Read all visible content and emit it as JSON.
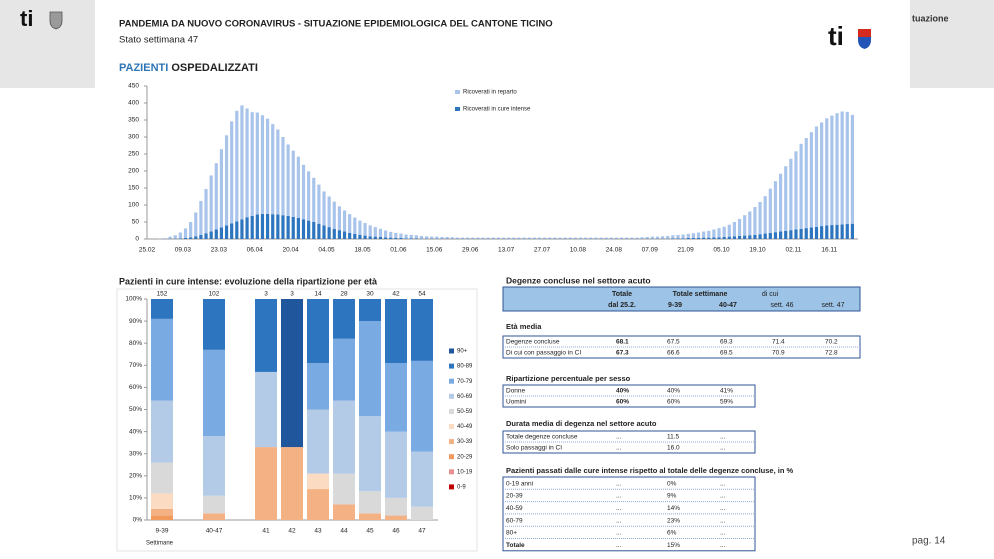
{
  "header": {
    "logo_text": "ti",
    "title": "PANDEMIA DA NUOVO CORONAVIRUS - SITUAZIONE EPIDEMIOLOGICA DEL CANTONE TICINO",
    "subtitle": "Stato settimana 47",
    "section_title_1": "PAZIENTI",
    "section_title_2": "OSPEDALIZZATI",
    "side_text": "tuazione",
    "page": "pag. 14"
  },
  "chart_data": [
    {
      "type": "bar",
      "stacked": true,
      "categories": [
        "25.02",
        null,
        null,
        null,
        null,
        null,
        null,
        "09.03",
        null,
        null,
        null,
        null,
        null,
        null,
        "23.03",
        null,
        null,
        null,
        null,
        null,
        null,
        "06.04",
        null,
        null,
        null,
        null,
        null,
        null,
        "20.04",
        null,
        null,
        null,
        null,
        null,
        null,
        "04.05",
        null,
        null,
        null,
        null,
        null,
        null,
        "18.05",
        null,
        null,
        null,
        null,
        null,
        null,
        "01.06",
        null,
        null,
        null,
        null,
        null,
        null,
        "15.06",
        null,
        null,
        null,
        null,
        null,
        null,
        "29.06",
        null,
        null,
        null,
        null,
        null,
        null,
        "13.07",
        null,
        null,
        null,
        null,
        null,
        null,
        "27.07",
        null,
        null,
        null,
        null,
        null,
        null,
        "10.08",
        null,
        null,
        null,
        null,
        null,
        null,
        "24.08",
        null,
        null,
        null,
        null,
        null,
        null,
        "07.09",
        null,
        null,
        null,
        null,
        null,
        null,
        "21.09",
        null,
        null,
        null,
        null,
        null,
        null,
        "05.10",
        null,
        null,
        null,
        null,
        null,
        null,
        "19.10",
        null,
        null,
        null,
        null,
        null,
        null,
        "02.11",
        null,
        null,
        null,
        null,
        null,
        null,
        "16.11",
        null,
        null,
        null,
        null
      ],
      "series": [
        {
          "name": "Ricoverati in reparto",
          "color": "#a9c4eb",
          "values": [
            0,
            0,
            1,
            3,
            6,
            10,
            17,
            28,
            45,
            70,
            100,
            130,
            165,
            195,
            230,
            265,
            300,
            325,
            335,
            320,
            305,
            300,
            290,
            280,
            265,
            250,
            230,
            210,
            195,
            180,
            160,
            145,
            130,
            115,
            100,
            90,
            80,
            70,
            62,
            55,
            48,
            42,
            37,
            32,
            28,
            24,
            20,
            17,
            15,
            13,
            11,
            10,
            9,
            8,
            7,
            6,
            6,
            5,
            5,
            4,
            3,
            3,
            3,
            3,
            3,
            3,
            3,
            3,
            3,
            3,
            3,
            3,
            3,
            3,
            3,
            3,
            3,
            3,
            3,
            3,
            3,
            3,
            3,
            3,
            3,
            3,
            3,
            3,
            3,
            3,
            3,
            3,
            3,
            3,
            3,
            3,
            4,
            5,
            6,
            6,
            7,
            8,
            9,
            10,
            11,
            12,
            14,
            16,
            18,
            20,
            23,
            27,
            30,
            35,
            42,
            50,
            60,
            70,
            82,
            95,
            110,
            130,
            150,
            170,
            190,
            210,
            230,
            250,
            265,
            280,
            295,
            305,
            315,
            322,
            328,
            332,
            330,
            320
          ]
        },
        {
          "name": "Ricoverati in cure intense",
          "color": "#2e75c0",
          "values": [
            0,
            0,
            0,
            0,
            1,
            1,
            2,
            3,
            5,
            8,
            12,
            17,
            22,
            28,
            34,
            40,
            46,
            52,
            58,
            64,
            68,
            72,
            74,
            74,
            73,
            72,
            70,
            68,
            65,
            62,
            58,
            54,
            50,
            45,
            40,
            35,
            30,
            26,
            22,
            18,
            15,
            12,
            10,
            8,
            7,
            6,
            5,
            4,
            3,
            3,
            2,
            2,
            2,
            1,
            1,
            1,
            1,
            1,
            1,
            1,
            1,
            1,
            1,
            1,
            1,
            1,
            1,
            1,
            1,
            1,
            1,
            1,
            1,
            1,
            1,
            1,
            1,
            1,
            1,
            1,
            1,
            1,
            1,
            1,
            1,
            1,
            1,
            1,
            1,
            1,
            1,
            1,
            1,
            1,
            1,
            1,
            1,
            1,
            1,
            1,
            1,
            1,
            2,
            2,
            2,
            3,
            3,
            3,
            4,
            4,
            5,
            5,
            6,
            7,
            8,
            9,
            10,
            11,
            12,
            14,
            16,
            18,
            20,
            22,
            24,
            26,
            28,
            30,
            32,
            34,
            36,
            38,
            40,
            41,
            42,
            43,
            44,
            45
          ]
        }
      ],
      "ylim": [
        0,
        450
      ],
      "yticks": [
        0,
        50,
        100,
        150,
        200,
        250,
        300,
        350,
        400,
        450
      ]
    },
    {
      "type": "stacked100",
      "title": "Pazienti in cure intense: evoluzione della ripartizione per età",
      "x_label": "Settimane",
      "categories": [
        "9-39",
        "40-47",
        "41",
        "42",
        "43",
        "44",
        "45",
        "46",
        "47"
      ],
      "totals": [
        152,
        102,
        3,
        3,
        14,
        28,
        30,
        42,
        54
      ],
      "series": [
        {
          "name": "0-9",
          "color": "#c00000",
          "values": [
            0,
            0,
            0,
            0,
            0,
            0,
            0,
            0,
            0
          ]
        },
        {
          "name": "10-19",
          "color": "#e89090",
          "values": [
            0,
            0,
            0,
            0,
            0,
            0,
            0,
            0,
            0
          ]
        },
        {
          "name": "20-29",
          "color": "#f19a5e",
          "values": [
            2,
            0,
            0,
            0,
            0,
            0,
            0,
            0,
            0
          ]
        },
        {
          "name": "30-39",
          "color": "#f4b183",
          "values": [
            3,
            3,
            33,
            33,
            14,
            7,
            3,
            2,
            0
          ]
        },
        {
          "name": "40-49",
          "color": "#fbdcc3",
          "values": [
            7,
            0,
            0,
            0,
            7,
            0,
            0,
            0,
            0
          ]
        },
        {
          "name": "50-59",
          "color": "#d9d9d9",
          "values": [
            14,
            8,
            0,
            0,
            0,
            14,
            10,
            8,
            6
          ]
        },
        {
          "name": "60-69",
          "color": "#b4cbe8",
          "values": [
            28,
            27,
            34,
            0,
            29,
            33,
            34,
            30,
            25
          ]
        },
        {
          "name": "70-79",
          "color": "#7aaae2",
          "values": [
            37,
            39,
            0,
            0,
            21,
            28,
            43,
            31,
            41
          ]
        },
        {
          "name": "80-89",
          "color": "#2e75c0",
          "values": [
            9,
            23,
            33,
            0,
            29,
            18,
            10,
            29,
            28
          ]
        },
        {
          "name": "90+",
          "color": "#1f569c",
          "values": [
            0,
            0,
            0,
            67,
            0,
            0,
            0,
            0,
            0
          ]
        }
      ],
      "ylim": [
        0,
        100
      ],
      "yticks": [
        {
          "value": 0,
          "label": "0%"
        },
        {
          "value": 10,
          "label": "10%"
        },
        {
          "value": 20,
          "label": "20%"
        },
        {
          "value": 30,
          "label": "30%"
        },
        {
          "value": 40,
          "label": "40%"
        },
        {
          "value": 50,
          "label": "50%"
        },
        {
          "value": 60,
          "label": "60%"
        },
        {
          "value": 70,
          "label": "70%"
        },
        {
          "value": 80,
          "label": "80%"
        },
        {
          "value": 90,
          "label": "90%"
        },
        {
          "value": 100,
          "label": "100%"
        }
      ]
    }
  ],
  "summary": {
    "title": "Degenze concluse nel settore acuto",
    "head": [
      "Totale",
      "dal 25.2.",
      "Totale settimane",
      "9-39",
      "40-47",
      "di cui",
      "sett. 46",
      "sett. 47"
    ],
    "sections": [
      {
        "title": "Età media",
        "rows": [
          [
            "Degenze concluse",
            "68.1",
            "67.5",
            "69.3",
            "71.4",
            "70.2"
          ],
          [
            "Di cui con passaggio in CI",
            "67.3",
            "66.6",
            "69.5",
            "70.9",
            "72.8"
          ]
        ]
      },
      {
        "title": "Ripartizione percentuale per sesso",
        "rows": [
          [
            "Donne",
            "40%",
            "40%",
            "41%"
          ],
          [
            "Uomini",
            "60%",
            "60%",
            "59%"
          ]
        ]
      },
      {
        "title": "Durata media di degenza nel settore acuto",
        "rows": [
          [
            "Totale degenze concluse",
            "...",
            "11.5",
            "..."
          ],
          [
            "Solo passaggi in CI",
            "...",
            "16.0",
            "..."
          ]
        ]
      },
      {
        "title": "Pazienti passati dalle cure intense rispetto al totale delle degenze concluse, in %",
        "rows": [
          [
            "0-19 anni",
            "...",
            "0%",
            "..."
          ],
          [
            "20-39",
            "...",
            "9%",
            "..."
          ],
          [
            "40-59",
            "...",
            "14%",
            "..."
          ],
          [
            "60-79",
            "...",
            "23%",
            "..."
          ],
          [
            "80+",
            "...",
            "6%",
            "..."
          ],
          [
            "Totale",
            "...",
            "15%",
            "..."
          ]
        ]
      }
    ]
  }
}
